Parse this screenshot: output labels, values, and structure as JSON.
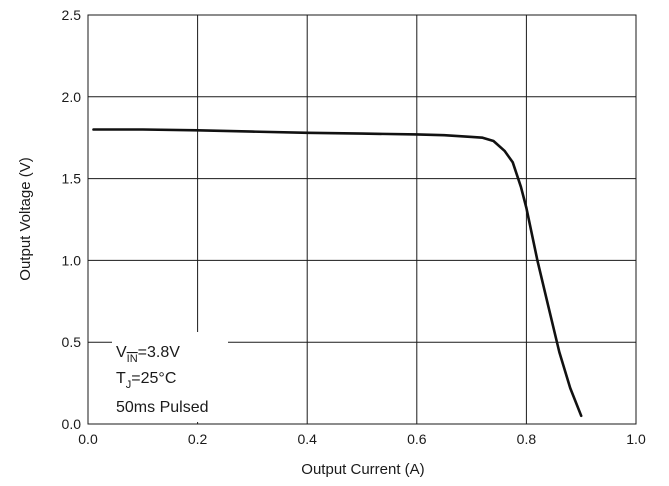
{
  "chart_data": {
    "type": "line",
    "xlabel": "Output Current (A)",
    "ylabel": "Output Voltage (V)",
    "xlim": [
      0.0,
      1.0
    ],
    "ylim": [
      0.0,
      2.5
    ],
    "x_ticks": [
      "0.0",
      "0.2",
      "0.4",
      "0.6",
      "0.8",
      "1.0"
    ],
    "y_ticks": [
      "0.0",
      "0.5",
      "1.0",
      "1.5",
      "2.0",
      "2.5"
    ],
    "grid": true,
    "series": [
      {
        "x": [
          0.01,
          0.1,
          0.2,
          0.3,
          0.4,
          0.5,
          0.6,
          0.65,
          0.7,
          0.72,
          0.74,
          0.76,
          0.775,
          0.79,
          0.8,
          0.82,
          0.84,
          0.86,
          0.88,
          0.9
        ],
        "y": [
          1.8,
          1.8,
          1.795,
          1.787,
          1.78,
          1.775,
          1.77,
          1.765,
          1.755,
          1.75,
          1.73,
          1.67,
          1.6,
          1.45,
          1.32,
          1.0,
          0.72,
          0.44,
          0.22,
          0.05
        ],
        "color": "#111111"
      }
    ],
    "annotations": {
      "v_prefix": "V",
      "v_sub": "IN",
      "v_value": "=3.8V",
      "t_prefix": "T",
      "t_sub": "J",
      "t_value": "=25°C",
      "pulse": "50ms Pulsed"
    }
  }
}
